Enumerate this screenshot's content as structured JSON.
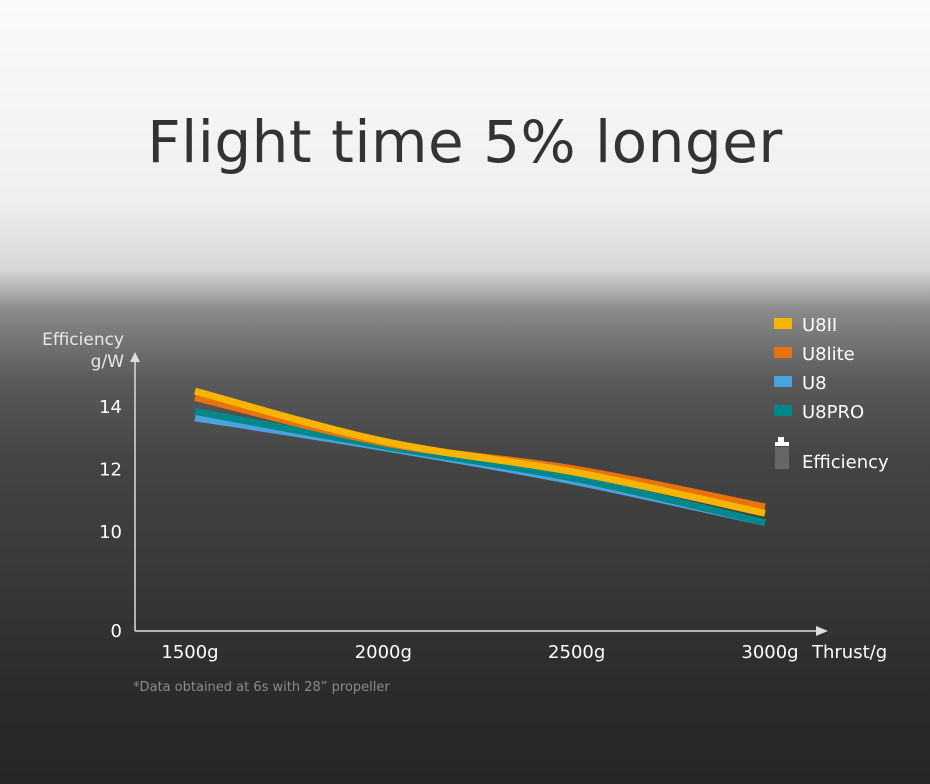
{
  "title": "Flight time 5% longer",
  "chart_data": {
    "type": "line",
    "ylabel": [
      "Efficiency",
      "g/W"
    ],
    "xlabel": "Thrust/g",
    "x": [
      1500,
      2000,
      2500,
      3000
    ],
    "x_tick_labels": [
      "1500g",
      "2000g",
      "2500g",
      "3000g"
    ],
    "y_ticks": [
      0,
      10,
      12,
      14
    ],
    "ylim": [
      0,
      15
    ],
    "y_axis_break": [
      0,
      10
    ],
    "grid": false,
    "legend_position": "top-right",
    "series": [
      {
        "name": "U8II",
        "color": "#f5b400",
        "values": [
          14.5,
          12.9,
          11.9,
          10.6
        ]
      },
      {
        "name": "U8lite",
        "color": "#e8720c",
        "values": [
          14.3,
          12.85,
          12.0,
          10.8
        ]
      },
      {
        "name": "U8",
        "color": "#4aa3df",
        "values": [
          13.65,
          12.7,
          11.6,
          10.3
        ]
      },
      {
        "name": "U8PRO",
        "color": "#00878a",
        "values": [
          13.85,
          12.75,
          11.7,
          10.3
        ]
      }
    ],
    "extra_legend": "Efficiency",
    "note": "*Data obtained at 6s with 28” propeller"
  }
}
